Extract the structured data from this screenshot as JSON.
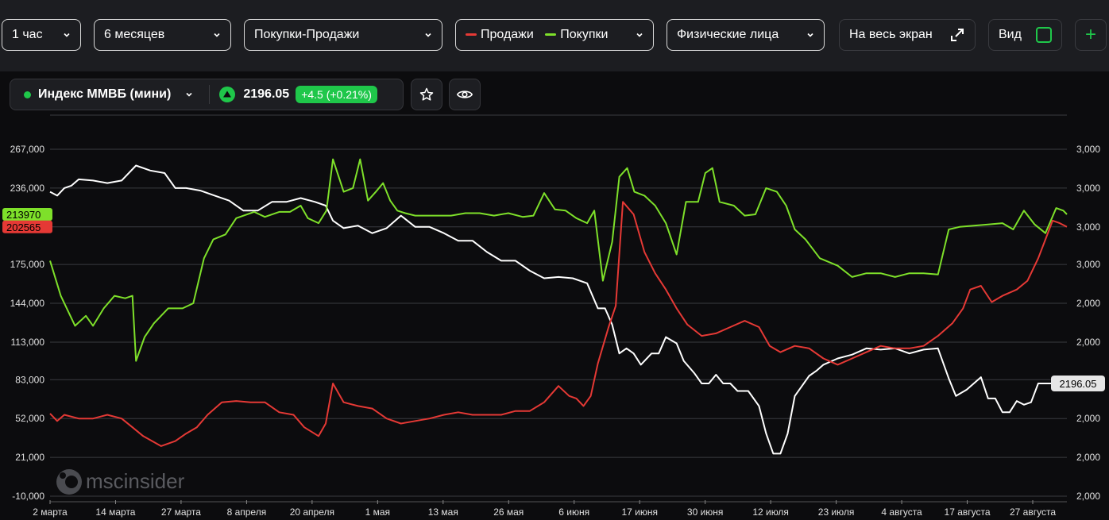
{
  "toolbar": {
    "interval": "1 час",
    "period": "6 месяцев",
    "mode": "Покупки-Продажи",
    "sales_label": "Продажи",
    "buys_label": "Покупки",
    "participants": "Физические лица",
    "fullscreen_label": "На весь экран",
    "view_label": "Вид",
    "add_label": "+"
  },
  "ticker": {
    "name": "Индекс ММВБ (мини)",
    "price": "2196.05",
    "change": "+4.5 (+0.21%)"
  },
  "watermark": "mscinsider",
  "colors": {
    "sales": "#e53935",
    "buys": "#7ee02a",
    "index": "#ffffff",
    "accent_green": "#1fc74a"
  },
  "chart_data": {
    "type": "line",
    "x_tick_labels": [
      "2 марта",
      "14 марта",
      "27 марта",
      "8 апреля",
      "20 апреля",
      "1 мая",
      "13 мая",
      "26 мая",
      "6 июня",
      "17 июня",
      "30 июня",
      "12 июля",
      "23 июля",
      "4 августа",
      "17 августа",
      "27 августа"
    ],
    "left_axis": {
      "ticks": [
        267000,
        236000,
        205000,
        175000,
        144000,
        113000,
        83000,
        52000,
        21000,
        -10000
      ],
      "tick_labels": [
        "267,000",
        "236,000",
        "",
        "175,000",
        "144,000",
        "113,000",
        "83,000",
        "52,000",
        "21,000",
        "-10,000"
      ],
      "ylim": [
        -10000,
        267000
      ]
    },
    "right_axis": {
      "tick_labels": [
        "3,000",
        "3,000",
        "3,000",
        "3,000",
        "2,000",
        "2,000",
        "2,000",
        "2,000",
        "2,000",
        "2,000"
      ]
    },
    "last_value_tags": {
      "buys": "213970",
      "sales": "202565",
      "index": "2196.05"
    },
    "series": [
      {
        "key": "buys",
        "points": [
          [
            0,
            178000
          ],
          [
            1.5,
            150000
          ],
          [
            3.5,
            126000
          ],
          [
            5,
            134000
          ],
          [
            6,
            126000
          ],
          [
            7.5,
            140000
          ],
          [
            9,
            150000
          ],
          [
            10.5,
            148000
          ],
          [
            11.5,
            150000
          ],
          [
            12,
            98000
          ],
          [
            13.2,
            117000
          ],
          [
            14.5,
            128000
          ],
          [
            16.5,
            140000
          ],
          [
            18.5,
            140000
          ],
          [
            20,
            144000
          ],
          [
            21.5,
            180000
          ],
          [
            22.8,
            195000
          ],
          [
            24.5,
            199000
          ],
          [
            26,
            212000
          ],
          [
            28.5,
            217000
          ],
          [
            30,
            213000
          ],
          [
            32,
            217000
          ],
          [
            33.5,
            217000
          ],
          [
            35,
            222000
          ],
          [
            36,
            212000
          ],
          [
            37.5,
            208000
          ],
          [
            38.6,
            218000
          ],
          [
            39.5,
            259000
          ],
          [
            41,
            233000
          ],
          [
            42.3,
            236000
          ],
          [
            43.3,
            259000
          ],
          [
            44.4,
            226000
          ],
          [
            45.5,
            233000
          ],
          [
            46.5,
            240000
          ],
          [
            47.5,
            226000
          ],
          [
            48.5,
            218000
          ],
          [
            49.6,
            216000
          ],
          [
            51,
            214000
          ],
          [
            53,
            214000
          ],
          [
            56,
            214000
          ],
          [
            58,
            216000
          ],
          [
            60,
            216000
          ],
          [
            62,
            214000
          ],
          [
            64,
            216000
          ],
          [
            66,
            213000
          ],
          [
            67.5,
            214000
          ],
          [
            69,
            232000
          ],
          [
            70.5,
            219000
          ],
          [
            72,
            218000
          ],
          [
            73.5,
            212000
          ],
          [
            75,
            208000
          ],
          [
            76,
            218000
          ],
          [
            77.2,
            162000
          ],
          [
            78.5,
            193000
          ],
          [
            79.5,
            245000
          ],
          [
            80.6,
            252000
          ],
          [
            81.6,
            233000
          ],
          [
            83,
            230000
          ],
          [
            84.5,
            222000
          ],
          [
            86,
            208000
          ],
          [
            87.5,
            183000
          ],
          [
            88.8,
            225000
          ],
          [
            90.5,
            225000
          ],
          [
            91.5,
            248000
          ],
          [
            92.5,
            252000
          ],
          [
            93.5,
            225000
          ],
          [
            95.5,
            222000
          ],
          [
            97,
            214000
          ],
          [
            98.5,
            215000
          ],
          [
            100,
            236000
          ],
          [
            101.5,
            233000
          ],
          [
            102.8,
            222000
          ],
          [
            104,
            203000
          ],
          [
            105.5,
            195000
          ],
          [
            107.5,
            180000
          ],
          [
            110,
            174000
          ],
          [
            112,
            165000
          ],
          [
            114,
            168000
          ],
          [
            116,
            168000
          ],
          [
            118,
            165000
          ],
          [
            120,
            168000
          ],
          [
            122,
            168000
          ],
          [
            124,
            167000
          ],
          [
            125.5,
            203000
          ],
          [
            127,
            205000
          ],
          [
            129,
            206000
          ],
          [
            131,
            207000
          ],
          [
            133,
            208000
          ],
          [
            134.5,
            203000
          ],
          [
            136,
            218000
          ],
          [
            137.5,
            207000
          ],
          [
            139,
            200000
          ],
          [
            140.5,
            220000
          ],
          [
            141.5,
            218000
          ],
          [
            142,
            215000
          ]
        ]
      },
      {
        "key": "sales",
        "points": [
          [
            0,
            56000
          ],
          [
            1,
            50000
          ],
          [
            2,
            55000
          ],
          [
            4,
            52000
          ],
          [
            6,
            52000
          ],
          [
            8,
            55000
          ],
          [
            10,
            52000
          ],
          [
            11.5,
            45000
          ],
          [
            13,
            38000
          ],
          [
            15.5,
            30000
          ],
          [
            17.5,
            34000
          ],
          [
            19,
            40000
          ],
          [
            20.5,
            45000
          ],
          [
            22,
            55000
          ],
          [
            24,
            65000
          ],
          [
            26,
            66000
          ],
          [
            28,
            65000
          ],
          [
            30,
            65000
          ],
          [
            32,
            57000
          ],
          [
            34,
            55000
          ],
          [
            35.5,
            45000
          ],
          [
            37.5,
            38000
          ],
          [
            38.5,
            48000
          ],
          [
            39.5,
            80000
          ],
          [
            41,
            65000
          ],
          [
            43,
            62000
          ],
          [
            45,
            60000
          ],
          [
            47,
            52000
          ],
          [
            49,
            48000
          ],
          [
            51,
            50000
          ],
          [
            53,
            52000
          ],
          [
            55,
            55000
          ],
          [
            57,
            57000
          ],
          [
            59,
            55000
          ],
          [
            61,
            55000
          ],
          [
            63,
            55000
          ],
          [
            65,
            58000
          ],
          [
            67,
            58000
          ],
          [
            69,
            65000
          ],
          [
            71,
            78000
          ],
          [
            72.5,
            70000
          ],
          [
            73.5,
            68000
          ],
          [
            74.5,
            62000
          ],
          [
            75.5,
            70000
          ],
          [
            76.5,
            96000
          ],
          [
            78,
            125000
          ],
          [
            79,
            142000
          ],
          [
            80,
            225000
          ],
          [
            81.5,
            215000
          ],
          [
            83,
            185000
          ],
          [
            84.5,
            168000
          ],
          [
            86,
            155000
          ],
          [
            87.5,
            140000
          ],
          [
            89,
            127000
          ],
          [
            91,
            118000
          ],
          [
            93,
            120000
          ],
          [
            95,
            125000
          ],
          [
            97,
            130000
          ],
          [
            99,
            125000
          ],
          [
            100.5,
            110000
          ],
          [
            102,
            105000
          ],
          [
            104,
            110000
          ],
          [
            106,
            108000
          ],
          [
            108,
            100000
          ],
          [
            110,
            95000
          ],
          [
            112,
            100000
          ],
          [
            114,
            105000
          ],
          [
            116,
            110000
          ],
          [
            118,
            108000
          ],
          [
            120,
            108000
          ],
          [
            122,
            110000
          ],
          [
            124,
            118000
          ],
          [
            126,
            128000
          ],
          [
            127.5,
            140000
          ],
          [
            128.5,
            155000
          ],
          [
            130,
            158000
          ],
          [
            131.5,
            145000
          ],
          [
            133,
            150000
          ],
          [
            135,
            155000
          ],
          [
            136.5,
            162000
          ],
          [
            138,
            180000
          ],
          [
            139,
            195000
          ],
          [
            140,
            210000
          ],
          [
            141,
            208000
          ],
          [
            142,
            205000
          ]
        ]
      },
      {
        "key": "index",
        "points": [
          [
            0,
            233000
          ],
          [
            1,
            230000
          ],
          [
            2,
            236000
          ],
          [
            3,
            238000
          ],
          [
            4,
            243000
          ],
          [
            6,
            242000
          ],
          [
            8,
            240000
          ],
          [
            10,
            242000
          ],
          [
            12,
            254000
          ],
          [
            14,
            250000
          ],
          [
            16,
            248000
          ],
          [
            17.5,
            236000
          ],
          [
            19,
            236000
          ],
          [
            21,
            234000
          ],
          [
            23,
            230000
          ],
          [
            25,
            226000
          ],
          [
            27,
            218000
          ],
          [
            29,
            218000
          ],
          [
            31,
            225000
          ],
          [
            33,
            225000
          ],
          [
            35,
            228000
          ],
          [
            37,
            225000
          ],
          [
            38.5,
            222000
          ],
          [
            39.5,
            210000
          ],
          [
            41,
            204000
          ],
          [
            43,
            206000
          ],
          [
            45,
            200000
          ],
          [
            47,
            204000
          ],
          [
            49,
            214000
          ],
          [
            51,
            205000
          ],
          [
            53,
            205000
          ],
          [
            55,
            200000
          ],
          [
            57,
            194000
          ],
          [
            59,
            194000
          ],
          [
            61,
            185000
          ],
          [
            63,
            178000
          ],
          [
            65,
            178000
          ],
          [
            67,
            170000
          ],
          [
            69,
            164000
          ],
          [
            71,
            165000
          ],
          [
            73,
            164000
          ],
          [
            75,
            160000
          ],
          [
            76.5,
            140000
          ],
          [
            77.5,
            140000
          ],
          [
            78.5,
            127000
          ],
          [
            79.5,
            104000
          ],
          [
            80.5,
            108000
          ],
          [
            81.5,
            104000
          ],
          [
            82.5,
            95000
          ],
          [
            84,
            104000
          ],
          [
            85,
            104000
          ],
          [
            86,
            117000
          ],
          [
            87.5,
            112000
          ],
          [
            88.5,
            98000
          ],
          [
            90,
            88000
          ],
          [
            91,
            80000
          ],
          [
            92,
            80000
          ],
          [
            93,
            87000
          ],
          [
            94,
            80000
          ],
          [
            95,
            80000
          ],
          [
            96,
            74000
          ],
          [
            97.5,
            74000
          ],
          [
            99,
            62000
          ],
          [
            100,
            40000
          ],
          [
            101,
            24000
          ],
          [
            102,
            24000
          ],
          [
            103,
            40000
          ],
          [
            104,
            70000
          ],
          [
            105,
            78000
          ],
          [
            106,
            86000
          ],
          [
            107,
            90000
          ],
          [
            108,
            95000
          ],
          [
            110,
            100000
          ],
          [
            112,
            103000
          ],
          [
            114,
            108000
          ],
          [
            116,
            107000
          ],
          [
            118,
            108000
          ],
          [
            120,
            104000
          ],
          [
            122,
            107000
          ],
          [
            124,
            108000
          ],
          [
            125.5,
            84000
          ],
          [
            126.5,
            70000
          ],
          [
            128,
            75000
          ],
          [
            130,
            85000
          ],
          [
            131,
            68000
          ],
          [
            132,
            68000
          ],
          [
            133,
            57000
          ],
          [
            134,
            57000
          ],
          [
            135,
            66000
          ],
          [
            136,
            63000
          ],
          [
            137,
            65000
          ],
          [
            138,
            80000
          ],
          [
            139,
            80000
          ],
          [
            140.5,
            80000
          ],
          [
            142,
            80000
          ]
        ]
      }
    ]
  }
}
